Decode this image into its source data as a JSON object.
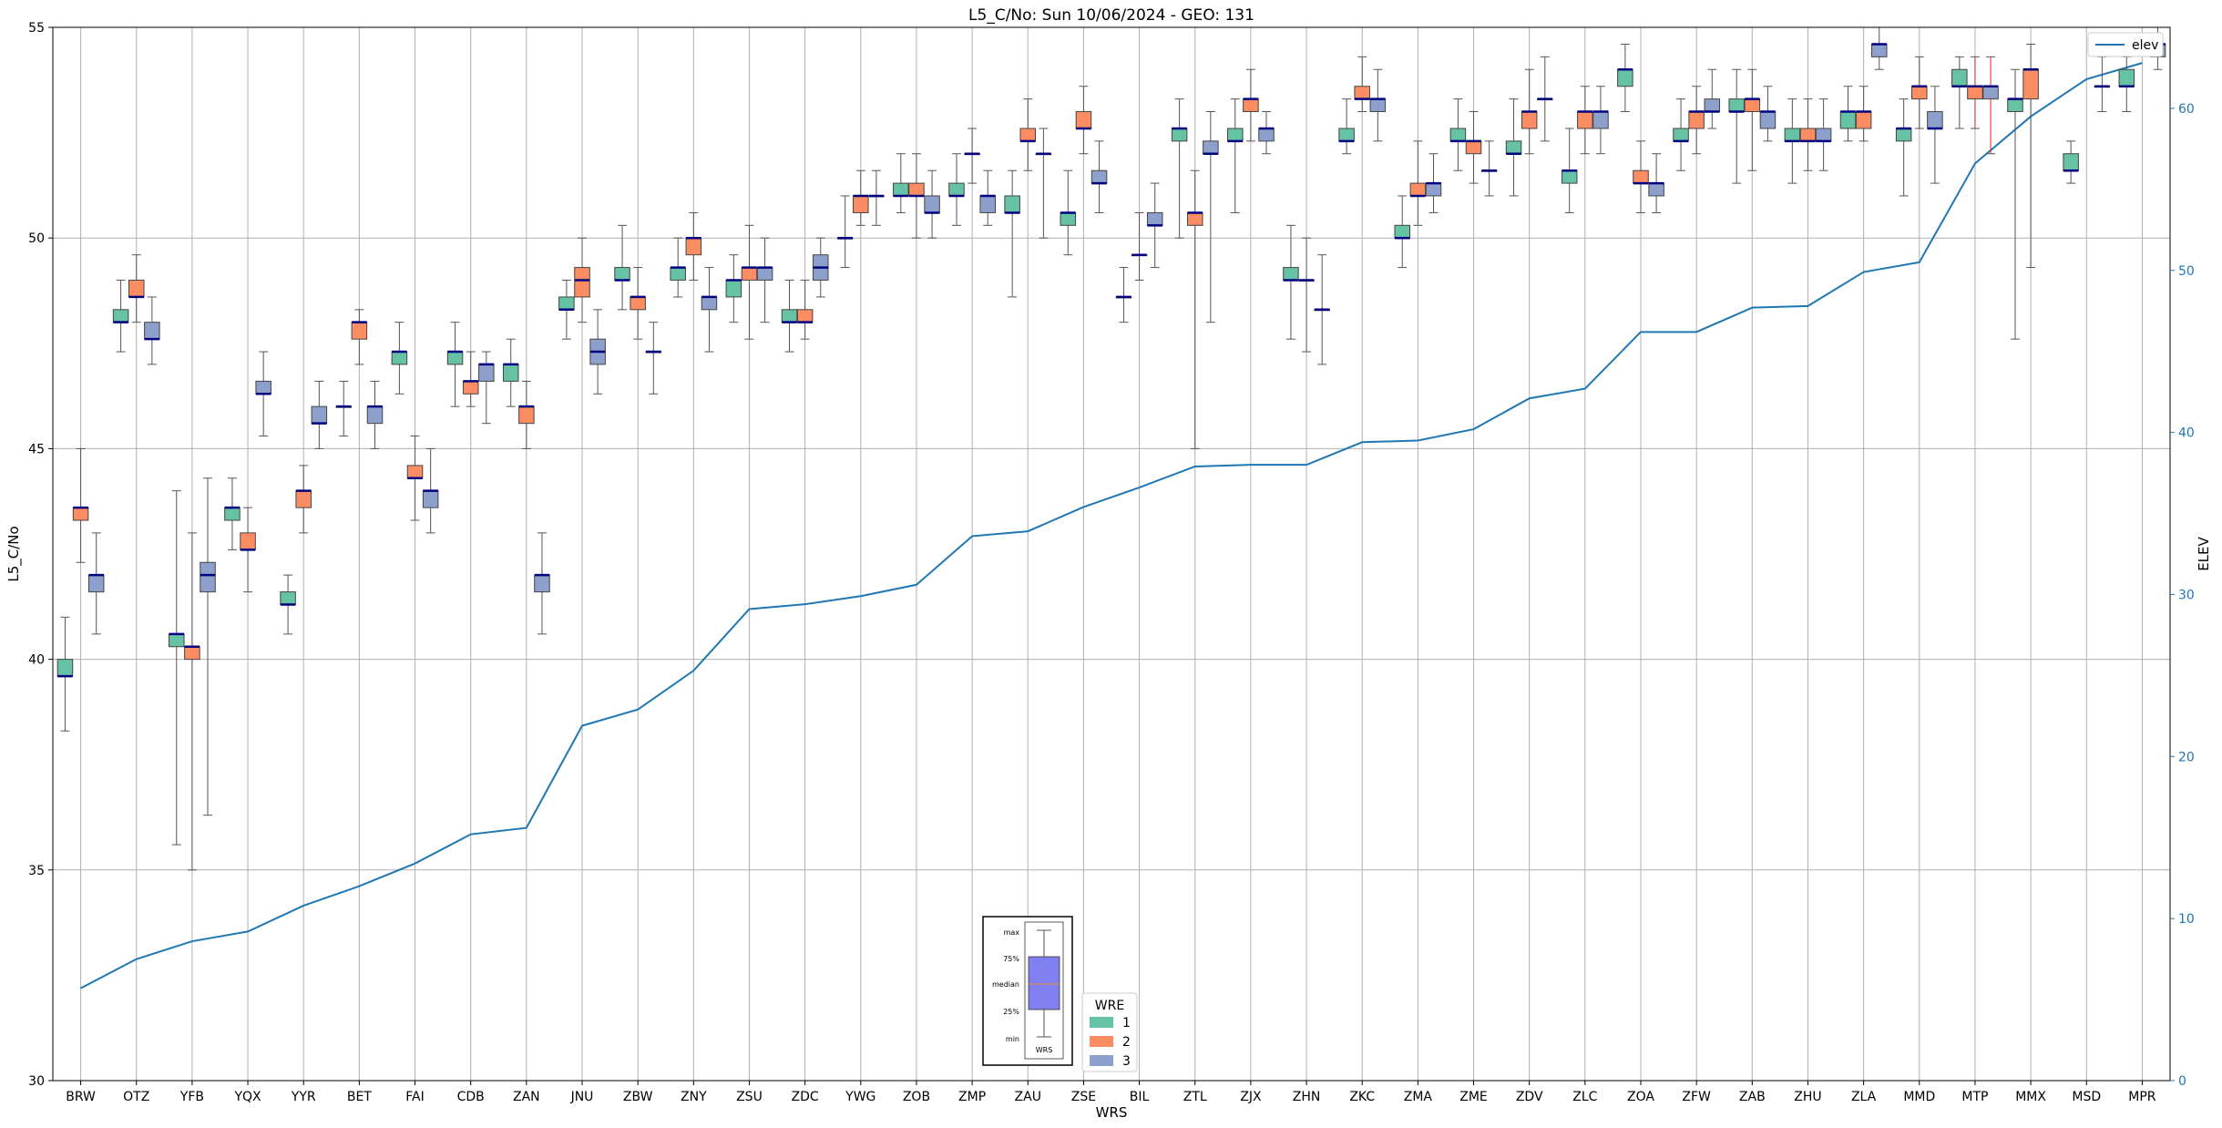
{
  "chart_data": {
    "type": "box",
    "title": "L5_C/No: Sun 10/06/2024 - GEO: 131",
    "xlabel": "WRS",
    "ylabel": "L5_C/No",
    "y2label": "ELEV",
    "ylim": [
      30,
      55
    ],
    "y2lim": [
      0,
      65
    ],
    "yticks": [
      30,
      35,
      40,
      45,
      50,
      55
    ],
    "y2ticks": [
      0,
      10,
      20,
      30,
      40,
      50,
      60
    ],
    "grid": true,
    "categories": [
      "BRW",
      "OTZ",
      "YFB",
      "YQX",
      "YYR",
      "BET",
      "FAI",
      "CDB",
      "ZAN",
      "JNU",
      "ZBW",
      "ZNY",
      "ZSU",
      "ZDC",
      "YWG",
      "ZOB",
      "ZMP",
      "ZAU",
      "ZSE",
      "BIL",
      "ZTL",
      "ZJX",
      "ZHN",
      "ZKC",
      "ZMA",
      "ZME",
      "ZDV",
      "ZLC",
      "ZOA",
      "ZFW",
      "ZAB",
      "ZHU",
      "ZLA",
      "MMD",
      "MTP",
      "MMX",
      "MSD",
      "MPR"
    ],
    "wre_colors": {
      "1": "#66c2a5",
      "2": "#fc8d62",
      "3": "#8da0cb"
    },
    "elev_series": {
      "name": "elev",
      "color": "#1f77b4",
      "values": [
        5.7,
        7.5,
        8.6,
        9.2,
        10.8,
        12.0,
        13.4,
        15.2,
        15.6,
        21.9,
        22.9,
        25.3,
        29.1,
        29.4,
        29.9,
        30.6,
        33.6,
        33.9,
        35.4,
        36.6,
        37.9,
        38.0,
        38.0,
        39.4,
        39.5,
        40.2,
        42.1,
        42.7,
        46.2,
        46.2,
        47.7,
        47.8,
        49.9,
        50.5,
        56.6,
        59.5,
        61.8,
        62.8
      ]
    },
    "boxes": [
      {
        "cat": "BRW",
        "wre": 1,
        "q1": 39.6,
        "med": 39.6,
        "q3": 40.0,
        "min": 38.3,
        "max": 41.0
      },
      {
        "cat": "BRW",
        "wre": 2,
        "q1": 43.3,
        "med": 43.6,
        "q3": 43.6,
        "min": 42.3,
        "max": 45.0
      },
      {
        "cat": "BRW",
        "wre": 3,
        "q1": 41.6,
        "med": 42.0,
        "q3": 42.0,
        "min": 40.6,
        "max": 43.0
      },
      {
        "cat": "OTZ",
        "wre": 1,
        "q1": 48.0,
        "med": 48.0,
        "q3": 48.3,
        "min": 47.3,
        "max": 49.0
      },
      {
        "cat": "OTZ",
        "wre": 2,
        "q1": 48.6,
        "med": 48.6,
        "q3": 49.0,
        "min": 48.0,
        "max": 49.6
      },
      {
        "cat": "OTZ",
        "wre": 3,
        "q1": 47.6,
        "med": 47.6,
        "q3": 48.0,
        "min": 47.0,
        "max": 48.6
      },
      {
        "cat": "YFB",
        "wre": 1,
        "q1": 40.3,
        "med": 40.6,
        "q3": 40.6,
        "min": 35.6,
        "max": 44.0
      },
      {
        "cat": "YFB",
        "wre": 2,
        "q1": 40.0,
        "med": 40.3,
        "q3": 40.3,
        "min": 35.0,
        "max": 43.0
      },
      {
        "cat": "YFB",
        "wre": 3,
        "q1": 41.6,
        "med": 42.0,
        "q3": 42.3,
        "min": 36.3,
        "max": 44.3
      },
      {
        "cat": "YQX",
        "wre": 1,
        "q1": 43.3,
        "med": 43.6,
        "q3": 43.6,
        "min": 42.6,
        "max": 44.3
      },
      {
        "cat": "YQX",
        "wre": 2,
        "q1": 42.6,
        "med": 42.6,
        "q3": 43.0,
        "min": 41.6,
        "max": 43.6
      },
      {
        "cat": "YQX",
        "wre": 3,
        "q1": 46.3,
        "med": 46.3,
        "q3": 46.6,
        "min": 45.3,
        "max": 47.3
      },
      {
        "cat": "YYR",
        "wre": 1,
        "q1": 41.3,
        "med": 41.3,
        "q3": 41.6,
        "min": 40.6,
        "max": 42.0
      },
      {
        "cat": "YYR",
        "wre": 2,
        "q1": 43.6,
        "med": 44.0,
        "q3": 44.0,
        "min": 43.0,
        "max": 44.6
      },
      {
        "cat": "YYR",
        "wre": 3,
        "q1": 45.6,
        "med": 45.6,
        "q3": 46.0,
        "min": 45.0,
        "max": 46.6
      },
      {
        "cat": "BET",
        "wre": 1,
        "q1": 46.0,
        "med": 46.0,
        "q3": 46.0,
        "min": 45.3,
        "max": 46.6
      },
      {
        "cat": "BET",
        "wre": 2,
        "q1": 47.6,
        "med": 48.0,
        "q3": 48.0,
        "min": 47.0,
        "max": 48.3
      },
      {
        "cat": "BET",
        "wre": 3,
        "q1": 45.6,
        "med": 46.0,
        "q3": 46.0,
        "min": 45.0,
        "max": 46.6
      },
      {
        "cat": "FAI",
        "wre": 1,
        "q1": 47.0,
        "med": 47.3,
        "q3": 47.3,
        "min": 46.3,
        "max": 48.0
      },
      {
        "cat": "FAI",
        "wre": 2,
        "q1": 44.3,
        "med": 44.3,
        "q3": 44.6,
        "min": 43.3,
        "max": 45.3
      },
      {
        "cat": "FAI",
        "wre": 3,
        "q1": 43.6,
        "med": 44.0,
        "q3": 44.0,
        "min": 43.0,
        "max": 45.0
      },
      {
        "cat": "CDB",
        "wre": 1,
        "q1": 47.0,
        "med": 47.3,
        "q3": 47.3,
        "min": 46.0,
        "max": 48.0
      },
      {
        "cat": "CDB",
        "wre": 2,
        "q1": 46.3,
        "med": 46.6,
        "q3": 46.6,
        "min": 46.0,
        "max": 47.3
      },
      {
        "cat": "CDB",
        "wre": 3,
        "q1": 46.6,
        "med": 47.0,
        "q3": 47.0,
        "min": 45.6,
        "max": 47.3
      },
      {
        "cat": "ZAN",
        "wre": 1,
        "q1": 46.6,
        "med": 47.0,
        "q3": 47.0,
        "min": 46.0,
        "max": 47.6
      },
      {
        "cat": "ZAN",
        "wre": 2,
        "q1": 45.6,
        "med": 46.0,
        "q3": 46.0,
        "min": 45.0,
        "max": 46.6
      },
      {
        "cat": "ZAN",
        "wre": 3,
        "q1": 41.6,
        "med": 42.0,
        "q3": 42.0,
        "min": 40.6,
        "max": 43.0
      },
      {
        "cat": "JNU",
        "wre": 1,
        "q1": 48.3,
        "med": 48.3,
        "q3": 48.6,
        "min": 47.6,
        "max": 49.0
      },
      {
        "cat": "JNU",
        "wre": 2,
        "q1": 48.6,
        "med": 49.0,
        "q3": 49.3,
        "min": 48.0,
        "max": 50.0
      },
      {
        "cat": "JNU",
        "wre": 3,
        "q1": 47.0,
        "med": 47.3,
        "q3": 47.6,
        "min": 46.3,
        "max": 48.3
      },
      {
        "cat": "ZBW",
        "wre": 1,
        "q1": 49.0,
        "med": 49.0,
        "q3": 49.3,
        "min": 48.3,
        "max": 50.3
      },
      {
        "cat": "ZBW",
        "wre": 2,
        "q1": 48.3,
        "med": 48.6,
        "q3": 48.6,
        "min": 47.6,
        "max": 49.3
      },
      {
        "cat": "ZBW",
        "wre": 3,
        "q1": 47.3,
        "med": 47.3,
        "q3": 47.3,
        "min": 46.3,
        "max": 48.0
      },
      {
        "cat": "ZNY",
        "wre": 1,
        "q1": 49.0,
        "med": 49.3,
        "q3": 49.3,
        "min": 48.6,
        "max": 50.0
      },
      {
        "cat": "ZNY",
        "wre": 2,
        "q1": 49.6,
        "med": 50.0,
        "q3": 50.0,
        "min": 49.0,
        "max": 50.6
      },
      {
        "cat": "ZNY",
        "wre": 3,
        "q1": 48.3,
        "med": 48.6,
        "q3": 48.6,
        "min": 47.3,
        "max": 49.3
      },
      {
        "cat": "ZSU",
        "wre": 1,
        "q1": 48.6,
        "med": 49.0,
        "q3": 49.0,
        "min": 48.0,
        "max": 49.6
      },
      {
        "cat": "ZSU",
        "wre": 2,
        "q1": 49.0,
        "med": 49.3,
        "q3": 49.3,
        "min": 47.6,
        "max": 50.3
      },
      {
        "cat": "ZSU",
        "wre": 3,
        "q1": 49.0,
        "med": 49.3,
        "q3": 49.3,
        "min": 48.0,
        "max": 50.0
      },
      {
        "cat": "ZDC",
        "wre": 1,
        "q1": 48.0,
        "med": 48.0,
        "q3": 48.3,
        "min": 47.3,
        "max": 49.0
      },
      {
        "cat": "ZDC",
        "wre": 2,
        "q1": 48.0,
        "med": 48.0,
        "q3": 48.3,
        "min": 47.6,
        "max": 49.0
      },
      {
        "cat": "ZDC",
        "wre": 3,
        "q1": 49.0,
        "med": 49.3,
        "q3": 49.6,
        "min": 48.6,
        "max": 50.0
      },
      {
        "cat": "YWG",
        "wre": 1,
        "q1": 50.0,
        "med": 50.0,
        "q3": 50.0,
        "min": 49.3,
        "max": 51.0
      },
      {
        "cat": "YWG",
        "wre": 2,
        "q1": 50.6,
        "med": 51.0,
        "q3": 51.0,
        "min": 50.3,
        "max": 51.6
      },
      {
        "cat": "YWG",
        "wre": 3,
        "q1": 51.0,
        "med": 51.0,
        "q3": 51.0,
        "min": 50.3,
        "max": 51.6
      },
      {
        "cat": "ZOB",
        "wre": 1,
        "q1": 51.0,
        "med": 51.0,
        "q3": 51.3,
        "min": 50.6,
        "max": 52.0
      },
      {
        "cat": "ZOB",
        "wre": 2,
        "q1": 51.0,
        "med": 51.0,
        "q3": 51.3,
        "min": 50.0,
        "max": 52.0
      },
      {
        "cat": "ZOB",
        "wre": 3,
        "q1": 50.6,
        "med": 50.6,
        "q3": 51.0,
        "min": 50.0,
        "max": 51.6
      },
      {
        "cat": "ZMP",
        "wre": 1,
        "q1": 51.0,
        "med": 51.0,
        "q3": 51.3,
        "min": 50.3,
        "max": 52.0
      },
      {
        "cat": "ZMP",
        "wre": 2,
        "q1": 52.0,
        "med": 52.0,
        "q3": 52.0,
        "min": 51.3,
        "max": 52.6
      },
      {
        "cat": "ZMP",
        "wre": 3,
        "q1": 50.6,
        "med": 51.0,
        "q3": 51.0,
        "min": 50.3,
        "max": 51.6
      },
      {
        "cat": "ZAU",
        "wre": 1,
        "q1": 50.6,
        "med": 50.6,
        "q3": 51.0,
        "min": 48.6,
        "max": 51.6
      },
      {
        "cat": "ZAU",
        "wre": 2,
        "q1": 52.3,
        "med": 52.3,
        "q3": 52.6,
        "min": 51.6,
        "max": 53.3
      },
      {
        "cat": "ZAU",
        "wre": 3,
        "q1": 52.0,
        "med": 52.0,
        "q3": 52.0,
        "min": 50.0,
        "max": 52.6
      },
      {
        "cat": "ZSE",
        "wre": 1,
        "q1": 50.3,
        "med": 50.6,
        "q3": 50.6,
        "min": 49.6,
        "max": 51.6
      },
      {
        "cat": "ZSE",
        "wre": 2,
        "q1": 52.6,
        "med": 52.6,
        "q3": 53.0,
        "min": 52.0,
        "max": 53.6
      },
      {
        "cat": "ZSE",
        "wre": 3,
        "q1": 51.3,
        "med": 51.3,
        "q3": 51.6,
        "min": 50.6,
        "max": 52.3
      },
      {
        "cat": "BIL",
        "wre": 1,
        "q1": 48.6,
        "med": 48.6,
        "q3": 48.6,
        "min": 48.0,
        "max": 49.3
      },
      {
        "cat": "BIL",
        "wre": 2,
        "q1": 49.6,
        "med": 49.6,
        "q3": 49.6,
        "min": 49.0,
        "max": 50.6
      },
      {
        "cat": "BIL",
        "wre": 3,
        "q1": 50.3,
        "med": 50.3,
        "q3": 50.6,
        "min": 49.3,
        "max": 51.3
      },
      {
        "cat": "ZTL",
        "wre": 1,
        "q1": 52.3,
        "med": 52.6,
        "q3": 52.6,
        "min": 50.0,
        "max": 53.3
      },
      {
        "cat": "ZTL",
        "wre": 2,
        "q1": 50.3,
        "med": 50.6,
        "q3": 50.6,
        "min": 45.0,
        "max": 51.6
      },
      {
        "cat": "ZTL",
        "wre": 3,
        "q1": 52.0,
        "med": 52.0,
        "q3": 52.3,
        "min": 48.0,
        "max": 53.0
      },
      {
        "cat": "ZJX",
        "wre": 1,
        "q1": 52.3,
        "med": 52.3,
        "q3": 52.6,
        "min": 50.6,
        "max": 53.3
      },
      {
        "cat": "ZJX",
        "wre": 2,
        "q1": 53.0,
        "med": 53.3,
        "q3": 53.3,
        "min": 52.3,
        "max": 54.0
      },
      {
        "cat": "ZJX",
        "wre": 3,
        "q1": 52.3,
        "med": 52.6,
        "q3": 52.6,
        "min": 52.0,
        "max": 53.0
      },
      {
        "cat": "ZHN",
        "wre": 1,
        "q1": 49.0,
        "med": 49.0,
        "q3": 49.3,
        "min": 47.6,
        "max": 50.3
      },
      {
        "cat": "ZHN",
        "wre": 2,
        "q1": 49.0,
        "med": 49.0,
        "q3": 49.0,
        "min": 47.3,
        "max": 50.0
      },
      {
        "cat": "ZHN",
        "wre": 3,
        "q1": 48.3,
        "med": 48.3,
        "q3": 48.3,
        "min": 47.0,
        "max": 49.6
      },
      {
        "cat": "ZKC",
        "wre": 1,
        "q1": 52.3,
        "med": 52.3,
        "q3": 52.6,
        "min": 52.0,
        "max": 53.3
      },
      {
        "cat": "ZKC",
        "wre": 2,
        "q1": 53.3,
        "med": 53.3,
        "q3": 53.6,
        "min": 53.0,
        "max": 54.3
      },
      {
        "cat": "ZKC",
        "wre": 3,
        "q1": 53.0,
        "med": 53.3,
        "q3": 53.3,
        "min": 52.3,
        "max": 54.0
      },
      {
        "cat": "ZMA",
        "wre": 1,
        "q1": 50.0,
        "med": 50.0,
        "q3": 50.3,
        "min": 49.3,
        "max": 51.0
      },
      {
        "cat": "ZMA",
        "wre": 2,
        "q1": 51.0,
        "med": 51.0,
        "q3": 51.3,
        "min": 50.3,
        "max": 52.3
      },
      {
        "cat": "ZMA",
        "wre": 3,
        "q1": 51.0,
        "med": 51.3,
        "q3": 51.3,
        "min": 50.6,
        "max": 52.0
      },
      {
        "cat": "ZME",
        "wre": 1,
        "q1": 52.3,
        "med": 52.3,
        "q3": 52.6,
        "min": 51.6,
        "max": 53.3
      },
      {
        "cat": "ZME",
        "wre": 2,
        "q1": 52.0,
        "med": 52.3,
        "q3": 52.3,
        "min": 51.3,
        "max": 53.0
      },
      {
        "cat": "ZME",
        "wre": 3,
        "q1": 51.6,
        "med": 51.6,
        "q3": 51.6,
        "min": 51.0,
        "max": 52.3
      },
      {
        "cat": "ZDV",
        "wre": 1,
        "q1": 52.0,
        "med": 52.0,
        "q3": 52.3,
        "min": 51.0,
        "max": 53.3
      },
      {
        "cat": "ZDV",
        "wre": 2,
        "q1": 52.6,
        "med": 53.0,
        "q3": 53.0,
        "min": 52.0,
        "max": 54.0
      },
      {
        "cat": "ZDV",
        "wre": 3,
        "q1": 53.3,
        "med": 53.3,
        "q3": 53.3,
        "min": 52.3,
        "max": 54.3
      },
      {
        "cat": "ZLC",
        "wre": 1,
        "q1": 51.3,
        "med": 51.6,
        "q3": 51.6,
        "min": 50.6,
        "max": 52.6
      },
      {
        "cat": "ZLC",
        "wre": 2,
        "q1": 52.6,
        "med": 53.0,
        "q3": 53.0,
        "min": 52.0,
        "max": 53.6
      },
      {
        "cat": "ZLC",
        "wre": 3,
        "q1": 52.6,
        "med": 53.0,
        "q3": 53.0,
        "min": 52.0,
        "max": 53.6
      },
      {
        "cat": "ZOA",
        "wre": 1,
        "q1": 53.6,
        "med": 54.0,
        "q3": 54.0,
        "min": 53.0,
        "max": 54.6
      },
      {
        "cat": "ZOA",
        "wre": 2,
        "q1": 51.3,
        "med": 51.3,
        "q3": 51.6,
        "min": 50.6,
        "max": 52.3
      },
      {
        "cat": "ZOA",
        "wre": 3,
        "q1": 51.0,
        "med": 51.3,
        "q3": 51.3,
        "min": 50.6,
        "max": 52.0
      },
      {
        "cat": "ZFW",
        "wre": 1,
        "q1": 52.3,
        "med": 52.3,
        "q3": 52.6,
        "min": 51.6,
        "max": 53.3
      },
      {
        "cat": "ZFW",
        "wre": 2,
        "q1": 52.6,
        "med": 53.0,
        "q3": 53.0,
        "min": 52.0,
        "max": 53.6
      },
      {
        "cat": "ZFW",
        "wre": 3,
        "q1": 53.0,
        "med": 53.0,
        "q3": 53.3,
        "min": 52.6,
        "max": 54.0
      },
      {
        "cat": "ZAB",
        "wre": 1,
        "q1": 53.0,
        "med": 53.0,
        "q3": 53.3,
        "min": 51.3,
        "max": 54.0
      },
      {
        "cat": "ZAB",
        "wre": 2,
        "q1": 53.0,
        "med": 53.3,
        "q3": 53.3,
        "min": 51.6,
        "max": 54.0
      },
      {
        "cat": "ZAB",
        "wre": 3,
        "q1": 52.6,
        "med": 53.0,
        "q3": 53.0,
        "min": 52.3,
        "max": 53.6
      },
      {
        "cat": "ZHU",
        "wre": 1,
        "q1": 52.3,
        "med": 52.3,
        "q3": 52.6,
        "min": 51.3,
        "max": 53.3
      },
      {
        "cat": "ZHU",
        "wre": 2,
        "q1": 52.3,
        "med": 52.3,
        "q3": 52.6,
        "min": 51.6,
        "max": 53.3
      },
      {
        "cat": "ZHU",
        "wre": 3,
        "q1": 52.3,
        "med": 52.3,
        "q3": 52.6,
        "min": 51.6,
        "max": 53.3
      },
      {
        "cat": "ZLA",
        "wre": 1,
        "q1": 52.6,
        "med": 53.0,
        "q3": 53.0,
        "min": 52.3,
        "max": 53.6
      },
      {
        "cat": "ZLA",
        "wre": 2,
        "q1": 52.6,
        "med": 53.0,
        "q3": 53.0,
        "min": 52.3,
        "max": 53.6
      },
      {
        "cat": "ZLA",
        "wre": 3,
        "q1": 54.3,
        "med": 54.6,
        "q3": 54.6,
        "min": 54.0,
        "max": 55.0
      },
      {
        "cat": "MMD",
        "wre": 1,
        "q1": 52.3,
        "med": 52.6,
        "q3": 52.6,
        "min": 51.0,
        "max": 53.3
      },
      {
        "cat": "MMD",
        "wre": 2,
        "q1": 53.3,
        "med": 53.6,
        "q3": 53.6,
        "min": 52.6,
        "max": 54.3
      },
      {
        "cat": "MMD",
        "wre": 3,
        "q1": 52.6,
        "med": 52.6,
        "q3": 53.0,
        "min": 51.3,
        "max": 53.6
      },
      {
        "cat": "MTP",
        "wre": 1,
        "q1": 53.6,
        "med": 53.6,
        "q3": 54.0,
        "min": 52.6,
        "max": 54.3
      },
      {
        "cat": "MTP",
        "wre": 2,
        "q1": 53.3,
        "med": 53.6,
        "q3": 53.6,
        "min": 52.6,
        "max": 54.3
      },
      {
        "cat": "MTP",
        "wre": 3,
        "q1": 53.3,
        "med": 53.6,
        "q3": 53.6,
        "min": 52.0,
        "max": 54.3
      },
      {
        "cat": "MMX",
        "wre": 1,
        "q1": 53.0,
        "med": 53.3,
        "q3": 53.3,
        "min": 47.6,
        "max": 54.0
      },
      {
        "cat": "MMX",
        "wre": 2,
        "q1": 53.3,
        "med": 54.0,
        "q3": 54.0,
        "min": 49.3,
        "max": 54.6
      },
      {
        "cat": "MSD",
        "wre": 1,
        "q1": 51.6,
        "med": 51.6,
        "q3": 52.0,
        "min": 51.3,
        "max": 52.3
      },
      {
        "cat": "MSD",
        "wre": 3,
        "q1": 53.6,
        "med": 53.6,
        "q3": 53.6,
        "min": 53.0,
        "max": 54.3
      },
      {
        "cat": "MPR",
        "wre": 1,
        "q1": 53.6,
        "med": 53.6,
        "q3": 54.0,
        "min": 53.0,
        "max": 54.3
      },
      {
        "cat": "MPR",
        "wre": 3,
        "q1": 54.3,
        "med": 54.6,
        "q3": 54.6,
        "min": 54.0,
        "max": 55.0
      }
    ],
    "legend_elev": {
      "label": "elev",
      "placement": "top-right"
    },
    "legend_wre": {
      "title": "WRE",
      "entries": [
        {
          "label": "1",
          "color": "#66c2a5"
        },
        {
          "label": "2",
          "color": "#fc8d62"
        },
        {
          "label": "3",
          "color": "#8da0cb"
        }
      ],
      "placement": "bottom-center"
    },
    "box_key": {
      "labels": [
        "max",
        "75%",
        "median",
        "25%",
        "min"
      ],
      "xlabel": "WRS",
      "color": "#8080f0"
    }
  }
}
